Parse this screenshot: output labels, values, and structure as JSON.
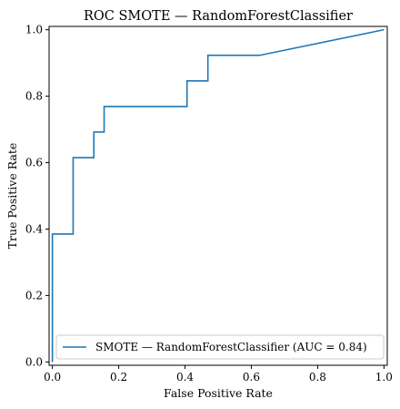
{
  "chart_data": {
    "type": "line",
    "title": "ROC SMOTE — RandomForestClassifier",
    "xlabel": "False Positive Rate",
    "ylabel": "True Positive Rate",
    "xlim": [
      -0.01,
      1.01
    ],
    "ylim": [
      -0.01,
      1.01
    ],
    "xticks": [
      0.0,
      0.2,
      0.4,
      0.6,
      0.8,
      1.0
    ],
    "yticks": [
      0.0,
      0.2,
      0.4,
      0.6,
      0.8,
      1.0
    ],
    "tick_labels": [
      "0.0",
      "0.2",
      "0.4",
      "0.6",
      "0.8",
      "1.0"
    ],
    "grid": false,
    "legend_position": "lower-right",
    "series": [
      {
        "name": "SMOTE — RandomForestClassifier (AUC = 0.84)",
        "color": "#1f77b4",
        "x": [
          0.0,
          0.0,
          0.0,
          0.0625,
          0.0625,
          0.125,
          0.125,
          0.156,
          0.156,
          0.406,
          0.406,
          0.438,
          0.438,
          0.469,
          0.469,
          0.625,
          1.0
        ],
        "y": [
          0.0,
          0.077,
          0.385,
          0.385,
          0.615,
          0.615,
          0.692,
          0.692,
          0.769,
          0.769,
          0.846,
          0.846,
          0.846,
          0.846,
          0.923,
          0.923,
          1.0
        ]
      }
    ]
  }
}
